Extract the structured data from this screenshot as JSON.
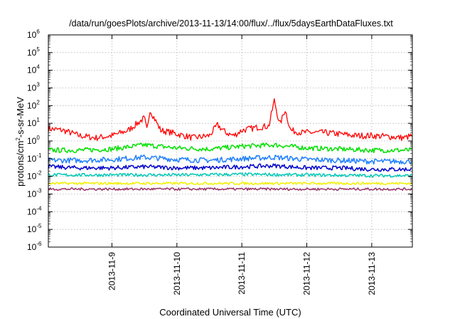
{
  "chart_data": {
    "type": "line",
    "title": "/data/run/goesPlots/archive/2013-11-13/14:00/flux/../flux/5daysEarthDataFluxes.txt",
    "xlabel": "Coordinated Universal Time (UTC)",
    "ylabel": {
      "base": "protons/cm",
      "exp": "2",
      "rest": "-s-sr-MeV"
    },
    "y_scale": "log",
    "ylim": [
      1e-06,
      1000000
    ],
    "xlim": [
      "2013-11-08T00:30",
      "2013-11-13T15:00"
    ],
    "x_ticks": [
      "2013-11-9",
      "2013-11-10",
      "2013-11-11",
      "2013-11-12",
      "2013-11-13"
    ],
    "y_ticks": [
      {
        "base": "10",
        "exp": "-6"
      },
      {
        "base": "10",
        "exp": "-5"
      },
      {
        "base": "10",
        "exp": "-4"
      },
      {
        "base": "10",
        "exp": "-3"
      },
      {
        "base": "10",
        "exp": "-2"
      },
      {
        "base": "10",
        "exp": "-1"
      },
      {
        "base": "10",
        "exp": "0"
      },
      {
        "base": "10",
        "exp": "1"
      },
      {
        "base": "10",
        "exp": "2"
      },
      {
        "base": "10",
        "exp": "3"
      },
      {
        "base": "10",
        "exp": "4"
      },
      {
        "base": "10",
        "exp": "5"
      },
      {
        "base": "10",
        "exp": "6"
      }
    ],
    "grid": true,
    "series": [
      {
        "color": "#ff0000",
        "x": [
          "2013-11-08T00:30",
          "2013-11-08T06:00",
          "2013-11-08T12:00",
          "2013-11-08T18:00",
          "2013-11-09T00:00",
          "2013-11-09T06:00",
          "2013-11-09T12:00",
          "2013-11-09T13:00",
          "2013-11-09T14:00",
          "2013-11-09T18:00",
          "2013-11-09T22:00",
          "2013-11-10T00:00",
          "2013-11-10T06:00",
          "2013-11-10T12:00",
          "2013-11-10T15:00",
          "2013-11-10T18:00",
          "2013-11-10T21:00",
          "2013-11-11T00:00",
          "2013-11-11T06:00",
          "2013-11-11T10:00",
          "2013-11-11T12:00",
          "2013-11-11T14:00",
          "2013-11-11T16:00",
          "2013-11-11T18:00",
          "2013-11-11T22:00",
          "2013-11-12T00:00",
          "2013-11-12T06:00",
          "2013-11-12T12:00",
          "2013-11-12T18:00",
          "2013-11-13T00:00",
          "2013-11-13T06:00",
          "2013-11-13T12:00",
          "2013-11-13T15:00"
        ],
        "y": [
          5,
          4,
          2,
          1.5,
          2,
          4,
          20,
          3.5,
          60,
          4,
          3,
          2.5,
          1.5,
          2,
          8,
          3,
          2,
          4,
          6,
          7,
          200,
          8,
          60,
          4,
          3,
          3,
          3,
          2.5,
          2,
          2,
          1.8,
          1.5,
          2
        ]
      },
      {
        "color": "#00e000",
        "x": [
          "2013-11-08T00:30",
          "2013-11-08T12:00",
          "2013-11-09T00:00",
          "2013-11-09T12:00",
          "2013-11-10T00:00",
          "2013-11-10T12:00",
          "2013-11-11T00:00",
          "2013-11-11T12:00",
          "2013-11-12T00:00",
          "2013-11-12T12:00",
          "2013-11-13T00:00",
          "2013-11-13T15:00"
        ],
        "y": [
          0.3,
          0.3,
          0.35,
          0.6,
          0.4,
          0.35,
          0.5,
          0.6,
          0.4,
          0.35,
          0.3,
          0.3
        ]
      },
      {
        "color": "#2080ff",
        "x": [
          "2013-11-08T00:30",
          "2013-11-08T12:00",
          "2013-11-09T00:00",
          "2013-11-09T12:00",
          "2013-11-10T00:00",
          "2013-11-10T12:00",
          "2013-11-11T00:00",
          "2013-11-11T12:00",
          "2013-11-12T00:00",
          "2013-11-12T12:00",
          "2013-11-13T00:00",
          "2013-11-13T15:00"
        ],
        "y": [
          0.08,
          0.08,
          0.09,
          0.12,
          0.09,
          0.08,
          0.1,
          0.12,
          0.09,
          0.08,
          0.07,
          0.07
        ]
      },
      {
        "color": "#0000c8",
        "x": [
          "2013-11-08T00:30",
          "2013-11-08T12:00",
          "2013-11-09T00:00",
          "2013-11-09T12:00",
          "2013-11-10T00:00",
          "2013-11-10T12:00",
          "2013-11-11T00:00",
          "2013-11-11T12:00",
          "2013-11-12T00:00",
          "2013-11-12T12:00",
          "2013-11-13T00:00",
          "2013-11-13T15:00"
        ],
        "y": [
          0.035,
          0.03,
          0.03,
          0.035,
          0.03,
          0.03,
          0.035,
          0.04,
          0.03,
          0.03,
          0.025,
          0.025
        ]
      },
      {
        "color": "#00c8b4",
        "x": [
          "2013-11-08T00:30",
          "2013-11-09T00:00",
          "2013-11-10T00:00",
          "2013-11-11T00:00",
          "2013-11-12T00:00",
          "2013-11-13T00:00",
          "2013-11-13T15:00"
        ],
        "y": [
          0.012,
          0.012,
          0.012,
          0.013,
          0.012,
          0.011,
          0.011
        ]
      },
      {
        "color": "#f0f000",
        "x": [
          "2013-11-08T00:30",
          "2013-11-09T00:00",
          "2013-11-10T00:00",
          "2013-11-11T00:00",
          "2013-11-12T00:00",
          "2013-11-13T00:00",
          "2013-11-13T15:00"
        ],
        "y": [
          0.004,
          0.004,
          0.004,
          0.004,
          0.004,
          0.004,
          0.004
        ]
      },
      {
        "color": "#993366",
        "x": [
          "2013-11-08T00:30",
          "2013-11-09T00:00",
          "2013-11-10T00:00",
          "2013-11-11T00:00",
          "2013-11-12T00:00",
          "2013-11-13T00:00",
          "2013-11-13T15:00"
        ],
        "y": [
          0.0019,
          0.0019,
          0.0019,
          0.0019,
          0.0019,
          0.0019,
          0.0019
        ]
      }
    ]
  }
}
